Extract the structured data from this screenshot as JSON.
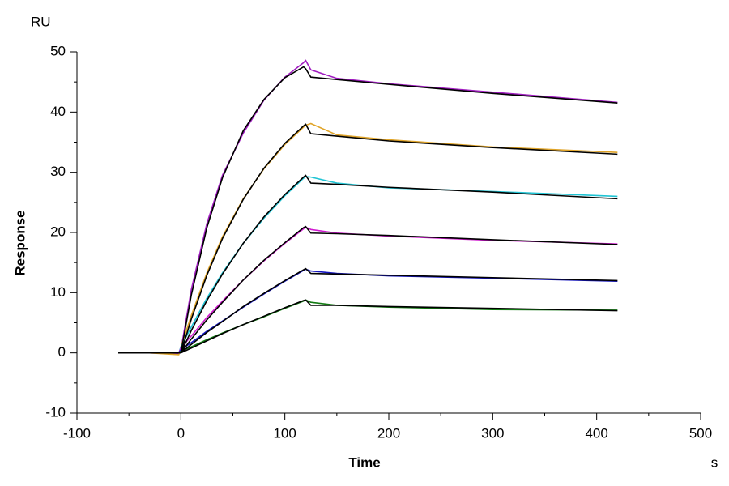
{
  "chart_data": {
    "type": "line",
    "y_unit": "RU",
    "ylabel": "Response",
    "xlabel": "Time",
    "x_unit": "s",
    "x": [
      -60,
      -30,
      -2,
      0,
      10,
      25,
      40,
      60,
      80,
      100,
      118,
      120,
      125,
      150,
      200,
      300,
      420
    ],
    "series": [
      {
        "color": "#a01cc0",
        "values": [
          0.1,
          0,
          -0.1,
          0.5,
          10.5,
          21.5,
          29.5,
          36.5,
          42,
          45.8,
          48.2,
          48.6,
          47,
          45.6,
          44.7,
          43.3,
          41.6
        ]
      },
      {
        "color": "#e0a428",
        "values": [
          0,
          0,
          -0.3,
          1,
          6.2,
          13.3,
          19.3,
          25.6,
          30.6,
          34.6,
          37.5,
          37.8,
          38.1,
          36.2,
          35.4,
          34.2,
          33.3
        ]
      },
      {
        "color": "#20c4d4",
        "values": [
          0,
          0,
          0,
          1,
          4.3,
          9.1,
          13.3,
          18.2,
          22.4,
          26.1,
          29,
          29.3,
          29.2,
          28.2,
          27.4,
          26.8,
          26
        ]
      },
      {
        "color": "#d018d0",
        "values": [
          0,
          0,
          0,
          0.8,
          2.8,
          5.9,
          8.6,
          12.1,
          15.3,
          18.2,
          20.6,
          20.9,
          20.5,
          19.9,
          19.4,
          18.7,
          18.1
        ]
      },
      {
        "color": "#1414c0",
        "values": [
          0,
          0,
          0,
          0.5,
          1.7,
          3.6,
          5.3,
          7.6,
          9.8,
          11.9,
          13.7,
          13.9,
          13.6,
          13.2,
          12.8,
          12.4,
          11.9
        ]
      },
      {
        "color": "#127a12",
        "values": [
          0,
          0,
          0,
          0.3,
          1.0,
          2.2,
          3.3,
          4.7,
          6.0,
          7.4,
          8.6,
          8.8,
          8.4,
          7.9,
          7.6,
          7.2,
          7.1
        ]
      },
      {
        "color": "#000000",
        "values": [
          0,
          0,
          0,
          0,
          9.6,
          20.8,
          29.1,
          36.9,
          42.1,
          45.7,
          47.5,
          47.2,
          45.8,
          45.4,
          44.6,
          43.1,
          41.5
        ]
      },
      {
        "color": "#000000",
        "values": [
          0,
          0,
          0,
          0,
          5.6,
          12.9,
          19.0,
          25.5,
          30.7,
          34.8,
          37.7,
          38.0,
          36.4,
          36.0,
          35.2,
          34.1,
          33.0
        ]
      },
      {
        "color": "#000000",
        "values": [
          0,
          0,
          0,
          0,
          3.7,
          8.7,
          13.1,
          18.2,
          22.6,
          26.3,
          29.2,
          29.5,
          28.2,
          28.0,
          27.5,
          26.7,
          25.6
        ]
      },
      {
        "color": "#000000",
        "values": [
          0,
          0,
          0,
          0,
          2.3,
          5.5,
          8.4,
          12.1,
          15.4,
          18.3,
          20.8,
          21.0,
          19.9,
          19.8,
          19.5,
          18.8,
          18.0
        ]
      },
      {
        "color": "#000000",
        "values": [
          0,
          0,
          0,
          0,
          1.4,
          3.4,
          5.2,
          7.7,
          9.9,
          12.0,
          13.8,
          14.0,
          13.2,
          13.1,
          12.9,
          12.5,
          12.0
        ]
      },
      {
        "color": "#000000",
        "values": [
          0,
          0,
          0,
          0,
          0.8,
          2.0,
          3.2,
          4.7,
          6.1,
          7.5,
          8.7,
          8.8,
          7.9,
          7.9,
          7.7,
          7.4,
          7.0
        ]
      }
    ],
    "xlim": [
      -100,
      500
    ],
    "xticks": [
      -100,
      0,
      100,
      200,
      300,
      400,
      500
    ],
    "xminorticks": [
      -50,
      50,
      150,
      250,
      350,
      450
    ],
    "ylim": [
      -10,
      50
    ],
    "yticks": [
      -10,
      0,
      10,
      20,
      30,
      40,
      50
    ],
    "yminorticks": [
      -5,
      5,
      15,
      25,
      35,
      45
    ]
  }
}
